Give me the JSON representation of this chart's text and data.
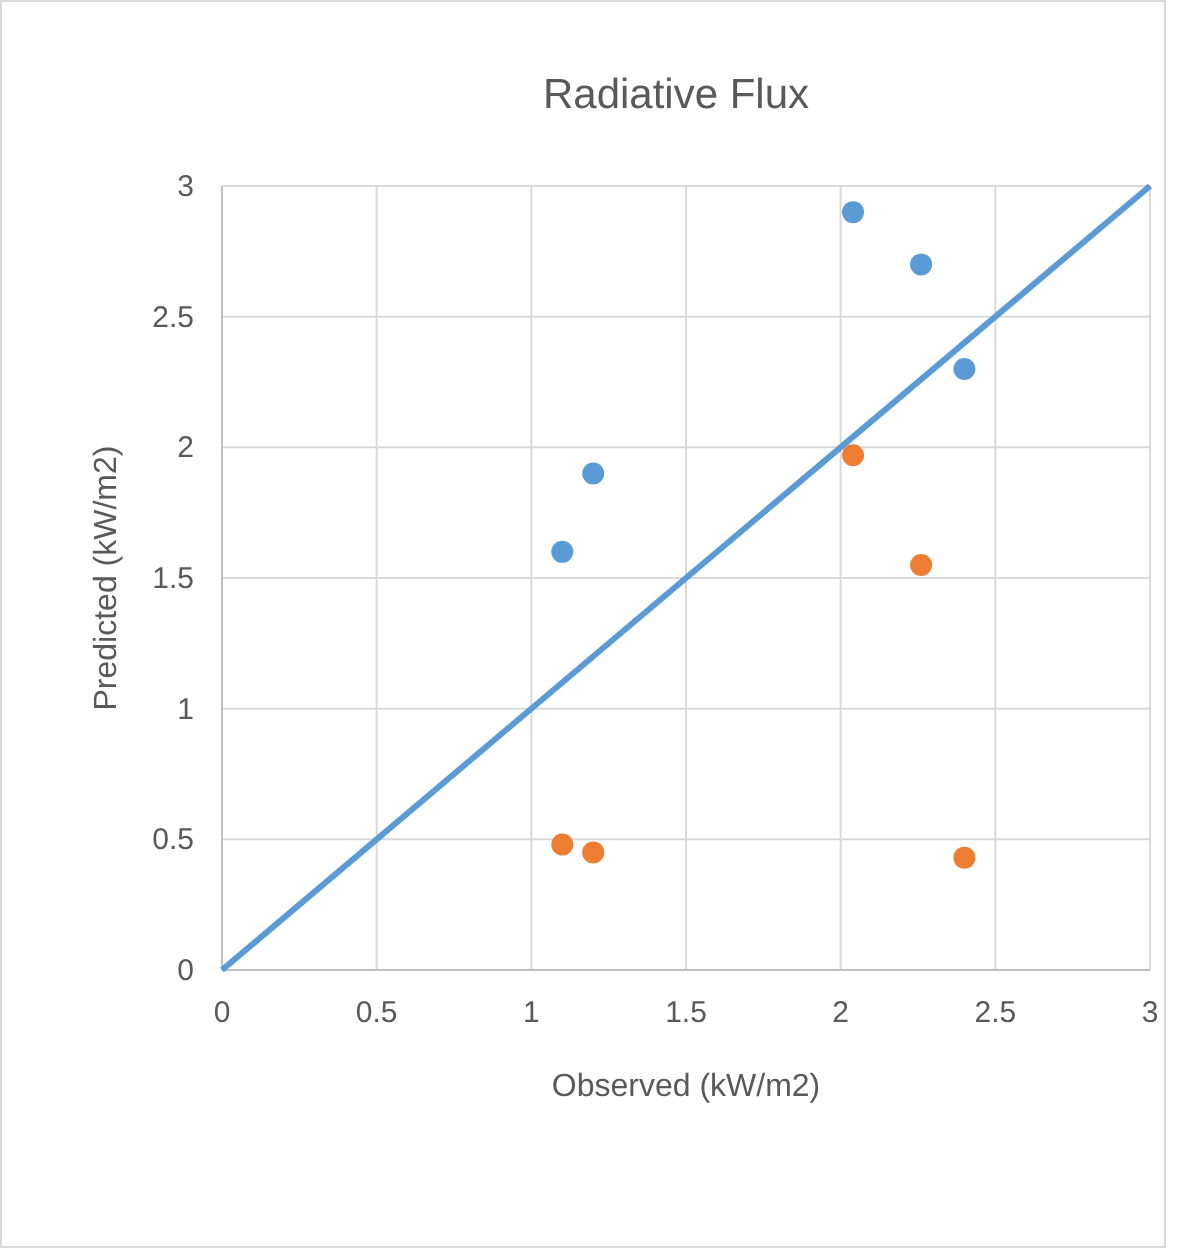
{
  "chart_data": {
    "type": "scatter",
    "title": "Radiative Flux",
    "xlabel": "Observed (kW/m2)",
    "ylabel": "Predicted (kW/m2)",
    "xlim": [
      0,
      3
    ],
    "ylim": [
      0,
      3
    ],
    "xticks": [
      0,
      0.5,
      1,
      1.5,
      2,
      2.5,
      3
    ],
    "yticks": [
      0,
      0.5,
      1,
      1.5,
      2,
      2.5,
      3
    ],
    "grid": true,
    "marker": "circle",
    "series": [
      {
        "type": "line",
        "color": "#5b9bd5",
        "x": [
          0,
          3
        ],
        "values": [
          0,
          3
        ],
        "marker": "none"
      },
      {
        "color": "#5b9bd5",
        "x": [
          1.1,
          1.2,
          2.04,
          2.26,
          2.4
        ],
        "values": [
          1.6,
          1.9,
          2.9,
          2.7,
          2.3
        ]
      },
      {
        "color": "#ed7d31",
        "x": [
          1.1,
          1.2,
          2.04,
          2.26,
          2.4
        ],
        "values": [
          0.48,
          0.45,
          1.97,
          1.55,
          0.43
        ]
      }
    ]
  }
}
